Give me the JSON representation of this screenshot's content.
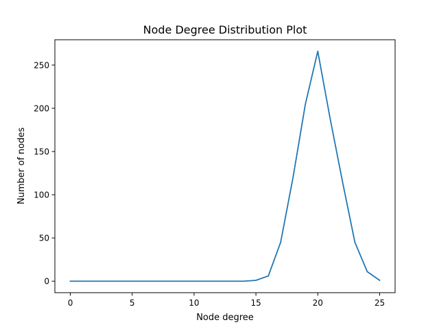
{
  "chart_data": {
    "type": "line",
    "title": "Node Degree Distribution Plot",
    "xlabel": "Node degree",
    "ylabel": "Number of nodes",
    "xlim": [
      -1.25,
      26.25
    ],
    "ylim": [
      -13.3,
      279.3
    ],
    "xticks": [
      0,
      5,
      10,
      15,
      20,
      25
    ],
    "yticks": [
      0,
      50,
      100,
      150,
      200,
      250
    ],
    "grid": false,
    "legend": "none",
    "series": [
      {
        "color": "#1f77b4",
        "x": [
          0,
          1,
          2,
          3,
          4,
          5,
          6,
          7,
          8,
          9,
          10,
          11,
          12,
          13,
          14,
          15,
          16,
          17,
          18,
          19,
          20,
          21,
          22,
          23,
          24,
          25
        ],
        "y": [
          0,
          0,
          0,
          0,
          0,
          0,
          0,
          0,
          0,
          0,
          0,
          0,
          0,
          0,
          0,
          1,
          6,
          45,
          120,
          205,
          266,
          188,
          115,
          45,
          11,
          1
        ]
      }
    ]
  }
}
